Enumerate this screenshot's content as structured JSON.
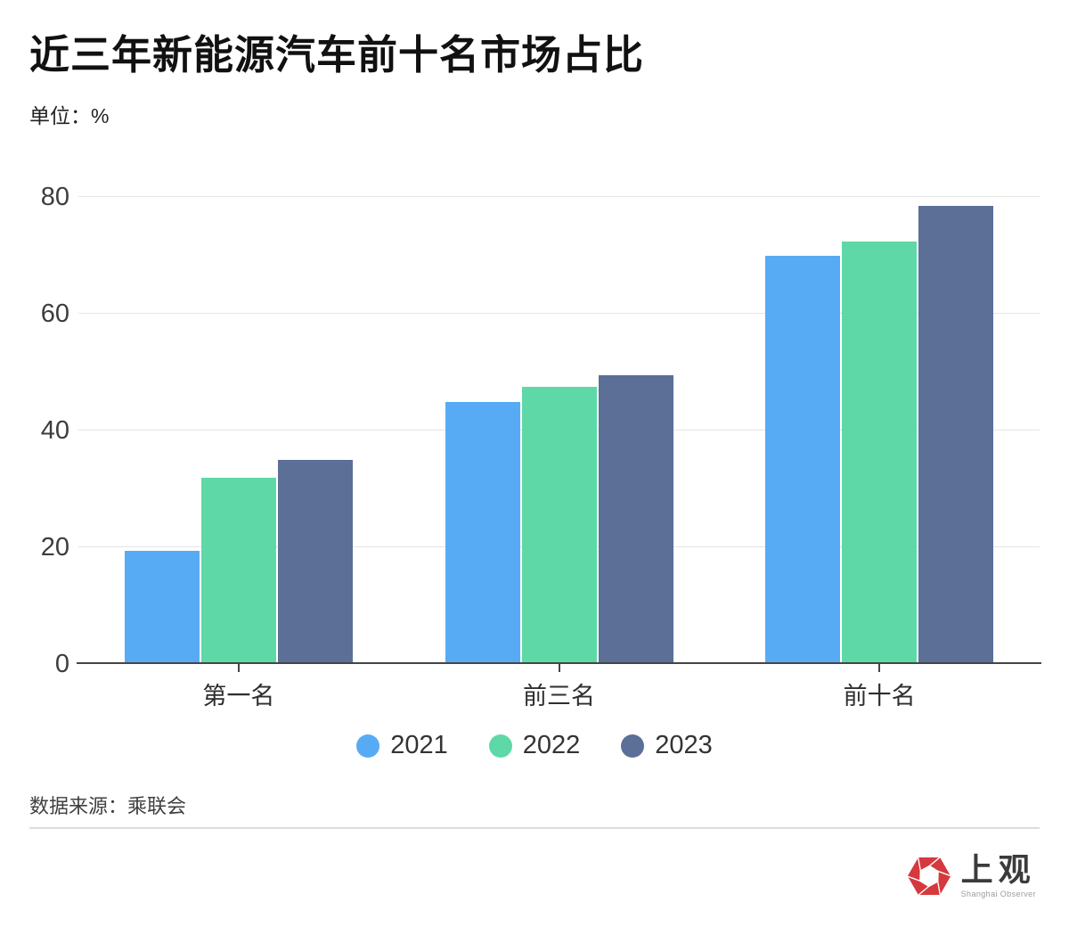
{
  "header": {
    "title": "近三年新能源汽车前十名市场占比",
    "unit_label": "单位：%"
  },
  "chart_data": {
    "type": "bar",
    "title": "近三年新能源汽车前十名市场占比",
    "unit": "%",
    "categories": [
      "第一名",
      "前三名",
      "前十名"
    ],
    "series": [
      {
        "name": "2021",
        "color": "#57ABF5",
        "values": [
          19.5,
          45,
          70
        ]
      },
      {
        "name": "2022",
        "color": "#5FD8A7",
        "values": [
          32,
          47.5,
          72.5
        ]
      },
      {
        "name": "2023",
        "color": "#5B6F97",
        "values": [
          35,
          49.5,
          78.5
        ]
      }
    ],
    "xlabel": "",
    "ylabel": "%",
    "ylim": [
      0,
      84
    ],
    "yticks": [
      0,
      20,
      40,
      60,
      80
    ],
    "grid": true,
    "legend_position": "bottom"
  },
  "footer": {
    "source": "数据来源：乘联会",
    "logo_cn": "上观",
    "logo_en": "Shanghai Observer"
  },
  "colors": {
    "bar_2021": "#57ABF5",
    "bar_2022": "#5FD8A7",
    "bar_2023": "#5B6F97",
    "gridline": "#e4e4e4",
    "axis": "#454545",
    "logo_red": "#D5393E"
  }
}
